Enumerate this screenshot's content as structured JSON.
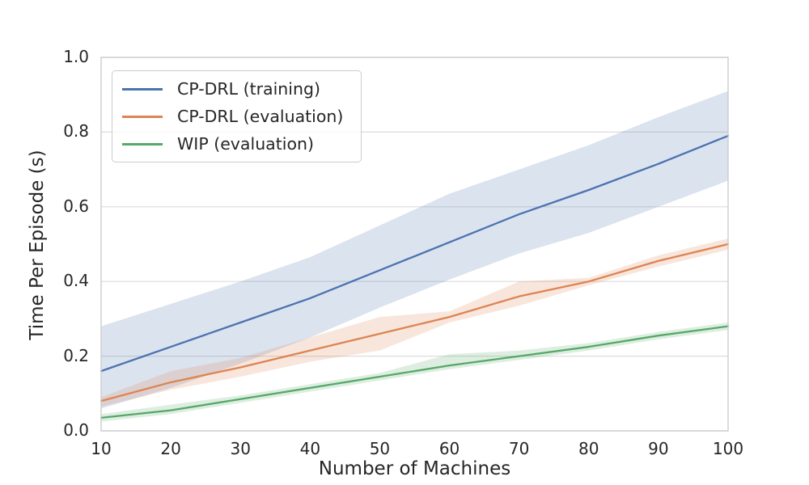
{
  "figure": {
    "background": "#ffffff"
  },
  "chart_data": {
    "type": "line",
    "title": "",
    "xlabel": "Number of Machines",
    "ylabel": "Time Per Episode (s)",
    "xlim": [
      10,
      100
    ],
    "ylim": [
      0.0,
      1.0
    ],
    "xticks": [
      10,
      20,
      30,
      40,
      50,
      60,
      70,
      80,
      90,
      100
    ],
    "yticks": [
      0.0,
      0.2,
      0.4,
      0.6,
      0.8,
      1.0
    ],
    "ytick_labels": [
      "0.0",
      "0.2",
      "0.4",
      "0.6",
      "0.8",
      "1.0"
    ],
    "grid": "horizontal",
    "legend_position": "upper-left",
    "x": [
      10,
      20,
      30,
      40,
      50,
      60,
      70,
      80,
      90,
      100
    ],
    "series": [
      {
        "name": "CP-DRL (training)",
        "color": "#4C72B0",
        "values": [
          0.16,
          0.225,
          0.29,
          0.355,
          0.43,
          0.505,
          0.58,
          0.645,
          0.715,
          0.79
        ],
        "band_lower": [
          0.06,
          0.115,
          0.18,
          0.25,
          0.33,
          0.405,
          0.475,
          0.53,
          0.6,
          0.67
        ],
        "band_upper": [
          0.28,
          0.34,
          0.4,
          0.465,
          0.55,
          0.635,
          0.7,
          0.765,
          0.84,
          0.91
        ]
      },
      {
        "name": "CP-DRL (evaluation)",
        "color": "#DD8452",
        "values": [
          0.08,
          0.13,
          0.17,
          0.215,
          0.26,
          0.305,
          0.36,
          0.4,
          0.455,
          0.5
        ],
        "band_lower": [
          0.065,
          0.11,
          0.145,
          0.185,
          0.215,
          0.29,
          0.335,
          0.39,
          0.44,
          0.485
        ],
        "band_upper": [
          0.09,
          0.16,
          0.195,
          0.25,
          0.305,
          0.32,
          0.4,
          0.41,
          0.47,
          0.515
        ]
      },
      {
        "name": "WIP (evaluation)",
        "color": "#55A868",
        "values": [
          0.035,
          0.055,
          0.085,
          0.115,
          0.145,
          0.175,
          0.2,
          0.225,
          0.255,
          0.28
        ],
        "band_lower": [
          0.025,
          0.045,
          0.075,
          0.105,
          0.135,
          0.165,
          0.19,
          0.215,
          0.245,
          0.27
        ],
        "band_upper": [
          0.045,
          0.07,
          0.095,
          0.125,
          0.155,
          0.205,
          0.215,
          0.235,
          0.265,
          0.29
        ]
      }
    ],
    "colors": {
      "grid": "#DCDCDC",
      "spine": "#CCCCCC",
      "text": "#262626",
      "band_opacity": 0.2
    }
  }
}
